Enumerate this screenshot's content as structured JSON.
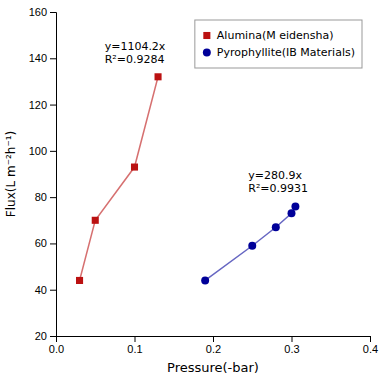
{
  "chart_data": {
    "type": "line",
    "xlabel": "Pressure(-bar)",
    "ylabel": "Flux(L m⁻²h⁻¹)",
    "xlim": [
      0.0,
      0.4
    ],
    "ylim": [
      20,
      160
    ],
    "xticks": [
      {
        "value": 0.0,
        "label": "0.0"
      },
      0.1,
      0.2,
      0.3,
      0.4
    ],
    "yticks": [
      20,
      40,
      60,
      80,
      100,
      120,
      140,
      160
    ],
    "grid": false,
    "legend": "upper right",
    "series": [
      {
        "name": "Alumina(M eidensha)",
        "color": "#BB1111",
        "marker": "square",
        "x": [
          0.03,
          0.05,
          0.1,
          0.13
        ],
        "values": [
          44,
          70,
          93,
          132
        ]
      },
      {
        "name": "Pyrophyllite(IB Materials)",
        "color": "#000099",
        "marker": "circle",
        "x": [
          0.19,
          0.25,
          0.28,
          0.3,
          0.305
        ],
        "values": [
          44,
          59,
          67,
          73,
          76
        ]
      }
    ],
    "annotations": [
      {
        "text": "y=1104.2x\nR²=0.9284",
        "x": 0.062,
        "y": 148
      },
      {
        "text": "y=280.9x\nR²=0.9931",
        "x": 0.245,
        "y": 92
      }
    ]
  }
}
